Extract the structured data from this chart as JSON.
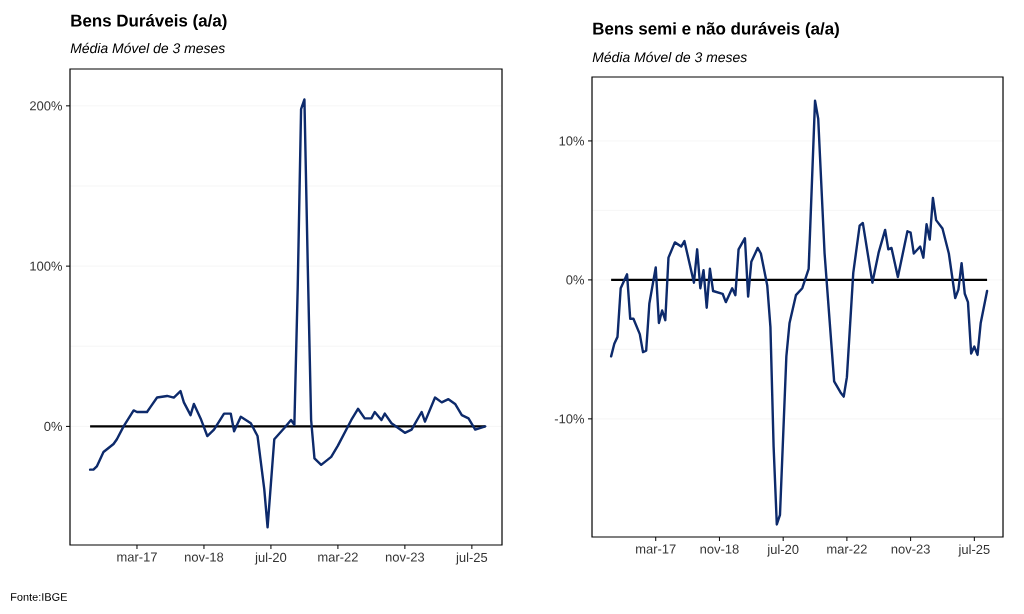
{
  "chart_data": [
    {
      "type": "line",
      "title": "Bens Duráveis (a/a)",
      "subtitle": "Média Móvel de 3 meses",
      "color": "#0d2a6b",
      "marker": "none",
      "grid": "y",
      "x": [
        "2016-01",
        "2016-02",
        "2016-03",
        "2016-05",
        "2016-08",
        "2016-09",
        "2016-11",
        "2017-02",
        "2017-03",
        "2017-06",
        "2017-07",
        "2017-09",
        "2017-12",
        "2018-02",
        "2018-04",
        "2018-05",
        "2018-07",
        "2018-08",
        "2018-10",
        "2018-12",
        "2019-02",
        "2019-05",
        "2019-07",
        "2019-08",
        "2019-10",
        "2020-01",
        "2020-03",
        "2020-05",
        "2020-06",
        "2020-08",
        "2020-11",
        "2021-01",
        "2021-02",
        "2021-03",
        "2021-04",
        "2021-05",
        "2021-06",
        "2021-07",
        "2021-08",
        "2021-10",
        "2022-01",
        "2022-03",
        "2022-07",
        "2022-09",
        "2022-11",
        "2023-01",
        "2023-02",
        "2023-04",
        "2023-05",
        "2023-07",
        "2023-11",
        "2024-01",
        "2024-04",
        "2024-05",
        "2024-08",
        "2024-10",
        "2024-12",
        "2025-02",
        "2025-04",
        "2025-06",
        "2025-08",
        "2025-11"
      ],
      "values": [
        -27,
        -27,
        -25,
        -16,
        -11,
        -8,
        0,
        10,
        9,
        9,
        12,
        18,
        19,
        18,
        22,
        15,
        7,
        14,
        5,
        -6,
        -2,
        8,
        8,
        -3,
        6,
        2,
        -6,
        -39,
        -63,
        -8,
        -1,
        4,
        1,
        87,
        198,
        204,
        100,
        4,
        -20,
        -24,
        -19,
        -12,
        4,
        11,
        5,
        5,
        9,
        4,
        8,
        2,
        -4,
        -2,
        9,
        3,
        18,
        15,
        17,
        14,
        7,
        5,
        -2,
        0
      ],
      "xlim": [
        "2015-07",
        "2026-04"
      ],
      "ylim": [
        -74,
        223
      ],
      "xticks": [
        {
          "value": "2017-03",
          "label": "mar-17"
        },
        {
          "value": "2018-11",
          "label": "nov-18"
        },
        {
          "value": "2020-07",
          "label": "jul-20"
        },
        {
          "value": "2022-03",
          "label": "mar-22"
        },
        {
          "value": "2023-11",
          "label": "nov-23"
        },
        {
          "value": "2025-07",
          "label": "jul-25"
        }
      ],
      "yticks": [
        {
          "value": 0,
          "label": "0%"
        },
        {
          "value": 100,
          "label": "100%"
        },
        {
          "value": 200,
          "label": "200%"
        }
      ],
      "ref_lines": [
        {
          "axis": "y",
          "value": 0,
          "color": "#000000"
        }
      ],
      "annotations": [
        "Fonte:IBGE"
      ]
    },
    {
      "type": "line",
      "title": "Bens semi e não duráveis (a/a)",
      "subtitle": "Média Móvel de 3 meses",
      "color": "#0d2a6b",
      "marker": "none",
      "grid": "y",
      "x": [
        "2016-01",
        "2016-02",
        "2016-03",
        "2016-04",
        "2016-06",
        "2016-07",
        "2016-08",
        "2016-10",
        "2016-11",
        "2016-12",
        "2017-01",
        "2017-03",
        "2017-04",
        "2017-05",
        "2017-06",
        "2017-07",
        "2017-09",
        "2017-11",
        "2017-12",
        "2018-03",
        "2018-04",
        "2018-05",
        "2018-06",
        "2018-07",
        "2018-08",
        "2018-09",
        "2018-12",
        "2019-01",
        "2019-03",
        "2019-04",
        "2019-05",
        "2019-07",
        "2019-08",
        "2019-09",
        "2019-11",
        "2019-12",
        "2020-02",
        "2020-03",
        "2020-04",
        "2020-05",
        "2020-06",
        "2020-08",
        "2020-09",
        "2020-11",
        "2021-01",
        "2021-03",
        "2021-05",
        "2021-06",
        "2021-08",
        "2021-11",
        "2022-01",
        "2022-02",
        "2022-03",
        "2022-05",
        "2022-07",
        "2022-08",
        "2022-11",
        "2023-01",
        "2023-03",
        "2023-04",
        "2023-05",
        "2023-07",
        "2023-10",
        "2023-11",
        "2023-12",
        "2024-02",
        "2024-03",
        "2024-04",
        "2024-05",
        "2024-06",
        "2024-07",
        "2024-09",
        "2024-11",
        "2025-01",
        "2025-02",
        "2025-03",
        "2025-04",
        "2025-05",
        "2025-06",
        "2025-07",
        "2025-08",
        "2025-09",
        "2025-11"
      ],
      "values": [
        -5.5,
        -4.6,
        -4.1,
        -0.6,
        0.4,
        -2.8,
        -2.8,
        -3.9,
        -5.2,
        -5.1,
        -1.7,
        0.9,
        -3.1,
        -2.2,
        -2.9,
        1.6,
        2.7,
        2.4,
        2.8,
        -0.2,
        2.2,
        -0.6,
        0.7,
        -2,
        0.8,
        -0.8,
        -1,
        -1.6,
        -0.6,
        -1.1,
        2.2,
        3,
        -1.2,
        1.3,
        2.3,
        1.9,
        -0.4,
        -3.4,
        -12,
        -17.6,
        -16.9,
        -5.5,
        -3.1,
        -1.1,
        -0.6,
        0.8,
        12.9,
        11.6,
        1.9,
        -7.3,
        -8.1,
        -8.4,
        -7,
        0.5,
        3.9,
        4.1,
        -0.2,
        2,
        3.6,
        2.2,
        2.3,
        0.2,
        3.5,
        3.4,
        1.9,
        2.4,
        1.6,
        4,
        2.9,
        5.9,
        4.3,
        3.7,
        1.9,
        -1.3,
        -0.7,
        1.2,
        -1,
        -1.6,
        -5.3,
        -4.8,
        -5.4,
        -3.1,
        -0.8
      ],
      "xlim": [
        "2015-07",
        "2026-04"
      ],
      "ylim": [
        -18.5,
        14.6
      ],
      "xticks": [
        {
          "value": "2017-03",
          "label": "mar-17"
        },
        {
          "value": "2018-11",
          "label": "nov-18"
        },
        {
          "value": "2020-07",
          "label": "jul-20"
        },
        {
          "value": "2022-03",
          "label": "mar-22"
        },
        {
          "value": "2023-11",
          "label": "nov-23"
        },
        {
          "value": "2025-07",
          "label": "jul-25"
        }
      ],
      "yticks": [
        {
          "value": -10,
          "label": "-10%"
        },
        {
          "value": 0,
          "label": "0%"
        },
        {
          "value": 10,
          "label": "10%"
        }
      ],
      "ref_lines": [
        {
          "axis": "y",
          "value": 0,
          "color": "#000000"
        }
      ]
    }
  ]
}
